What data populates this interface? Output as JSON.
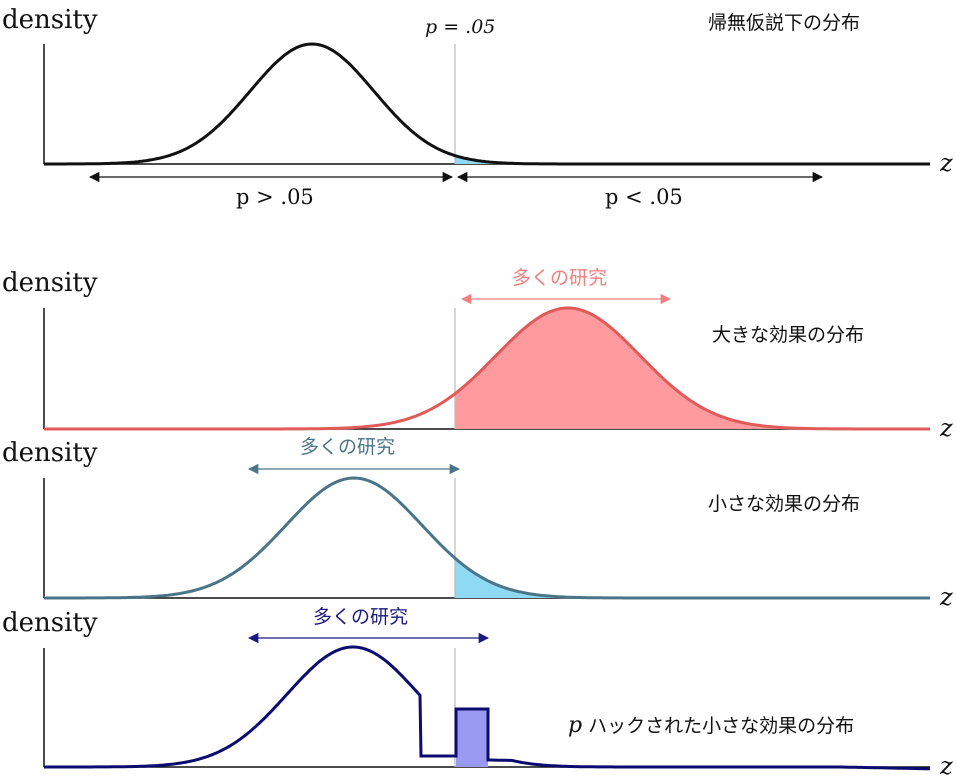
{
  "colors": {
    "null_curve": "#111111",
    "large_curve": "#e05a5a",
    "large_fill": "#ff9a9e",
    "small_curve": "#4a7589",
    "small_fill": "#8fdaf2",
    "hacked_curve": "#0b0b70",
    "hacked_fill": "#9a9af2",
    "large_arrow": "#f08080",
    "small_arrow": "#4a7589",
    "hacked_arrow": "#1a1a80",
    "cutoff_line": "#bbbbbb"
  },
  "labels": {
    "density": "density",
    "z": "z",
    "cutoff": "p = .05",
    "p_greater": "p > .05",
    "p_less": "p < .05",
    "many_studies": "多くの研究"
  },
  "panels": [
    {
      "id": "null",
      "title": "帰無仮説下の分布"
    },
    {
      "id": "large",
      "title": "大きな効果の分布"
    },
    {
      "id": "small",
      "title": "小さな効果の分布"
    },
    {
      "id": "hacked",
      "title_prefix": "p",
      "title": " ハックされた小さな効果の分布"
    }
  ]
}
